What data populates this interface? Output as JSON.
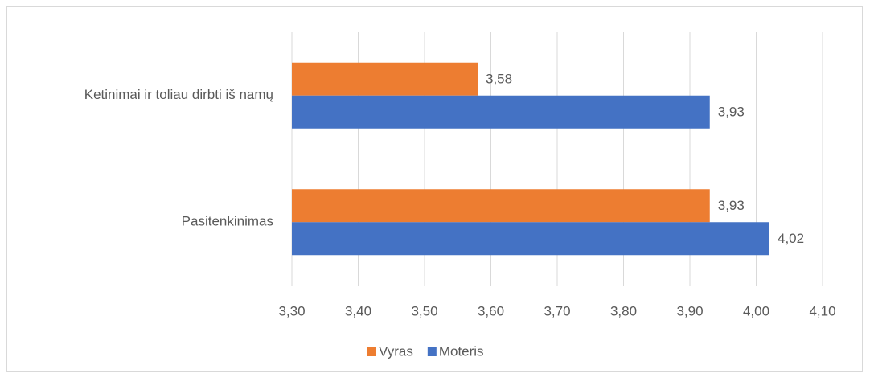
{
  "chart_data": {
    "type": "hbar",
    "categories": [
      "Ketinimai ir toliau dirbti iš namų",
      "Pasitenkinimas"
    ],
    "series": [
      {
        "name": "Vyras",
        "color": "#ed7d31",
        "values": [
          3.58,
          3.93
        ],
        "value_labels": [
          "3,58",
          "3,93"
        ]
      },
      {
        "name": "Moteris",
        "color": "#4472c4",
        "values": [
          3.93,
          4.02
        ],
        "value_labels": [
          "3,93",
          "4,02"
        ]
      }
    ],
    "xlim": [
      3.3,
      4.1
    ],
    "xticks": [
      {
        "value": 3.3,
        "label": "3,30"
      },
      {
        "value": 3.4,
        "label": "3,40"
      },
      {
        "value": 3.5,
        "label": "3,50"
      },
      {
        "value": 3.6,
        "label": "3,60"
      },
      {
        "value": 3.7,
        "label": "3,70"
      },
      {
        "value": 3.8,
        "label": "3,80"
      },
      {
        "value": 3.9,
        "label": "3,90"
      },
      {
        "value": 4.0,
        "label": "4,00"
      },
      {
        "value": 4.1,
        "label": "4,10"
      }
    ],
    "grid": true,
    "legend": "bottom"
  }
}
